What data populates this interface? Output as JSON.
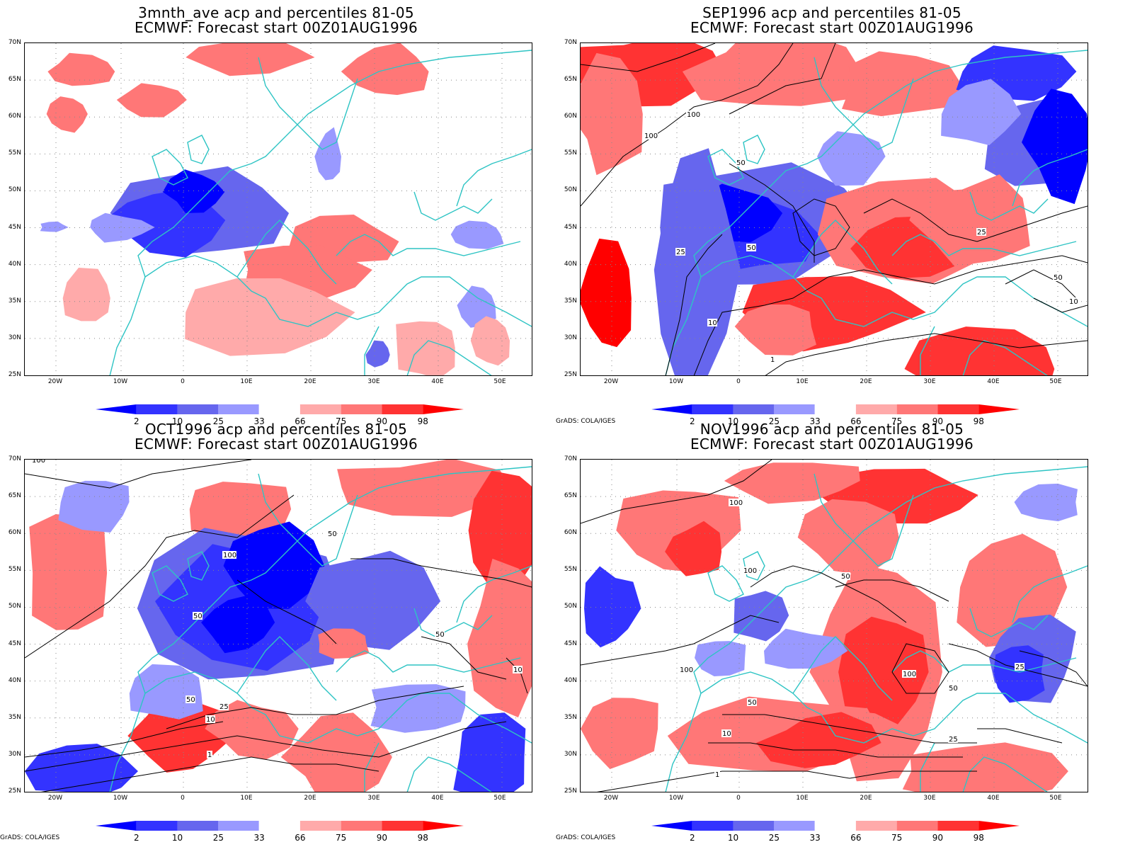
{
  "panels": [
    {
      "id": "p1",
      "title1": "3mnth_ave acp and percentiles 81-05",
      "title2": "ECMWF: Forecast start 00Z01AUG1996",
      "credit": ""
    },
    {
      "id": "p2",
      "title1": "SEP1996 acp and percentiles 81-05",
      "title2": "ECMWF: Forecast start 00Z01AUG1996",
      "credit": "GrADS: COLA/IGES"
    },
    {
      "id": "p3",
      "title1": "OCT1996 acp and percentiles 81-05",
      "title2": "ECMWF: Forecast start 00Z01AUG1996",
      "credit": "GrADS: COLA/IGES"
    },
    {
      "id": "p4",
      "title1": "NOV1996 acp and percentiles 81-05",
      "title2": "ECMWF: Forecast start 00Z01AUG1996",
      "credit": "GrADS: COLA/IGES"
    }
  ],
  "lat_labels": [
    "70N",
    "65N",
    "60N",
    "55N",
    "50N",
    "45N",
    "40N",
    "35N",
    "30N",
    "25N"
  ],
  "lon_labels": [
    "20W",
    "10W",
    "0",
    "10E",
    "20E",
    "30E",
    "40E",
    "50E"
  ],
  "colorbar": {
    "labels": [
      "2",
      "10",
      "25",
      "33",
      "66",
      "75",
      "90",
      "98"
    ],
    "colors": [
      "#0000ff",
      "#3333ff",
      "#6666ee",
      "#9999ff",
      "#ffffff",
      "#ffaaaa",
      "#ff7777",
      "#ff3333",
      "#ff0000"
    ]
  },
  "colors": {
    "coast": "#2ec4c4",
    "contour": "#000000",
    "grid": "#888888"
  }
}
